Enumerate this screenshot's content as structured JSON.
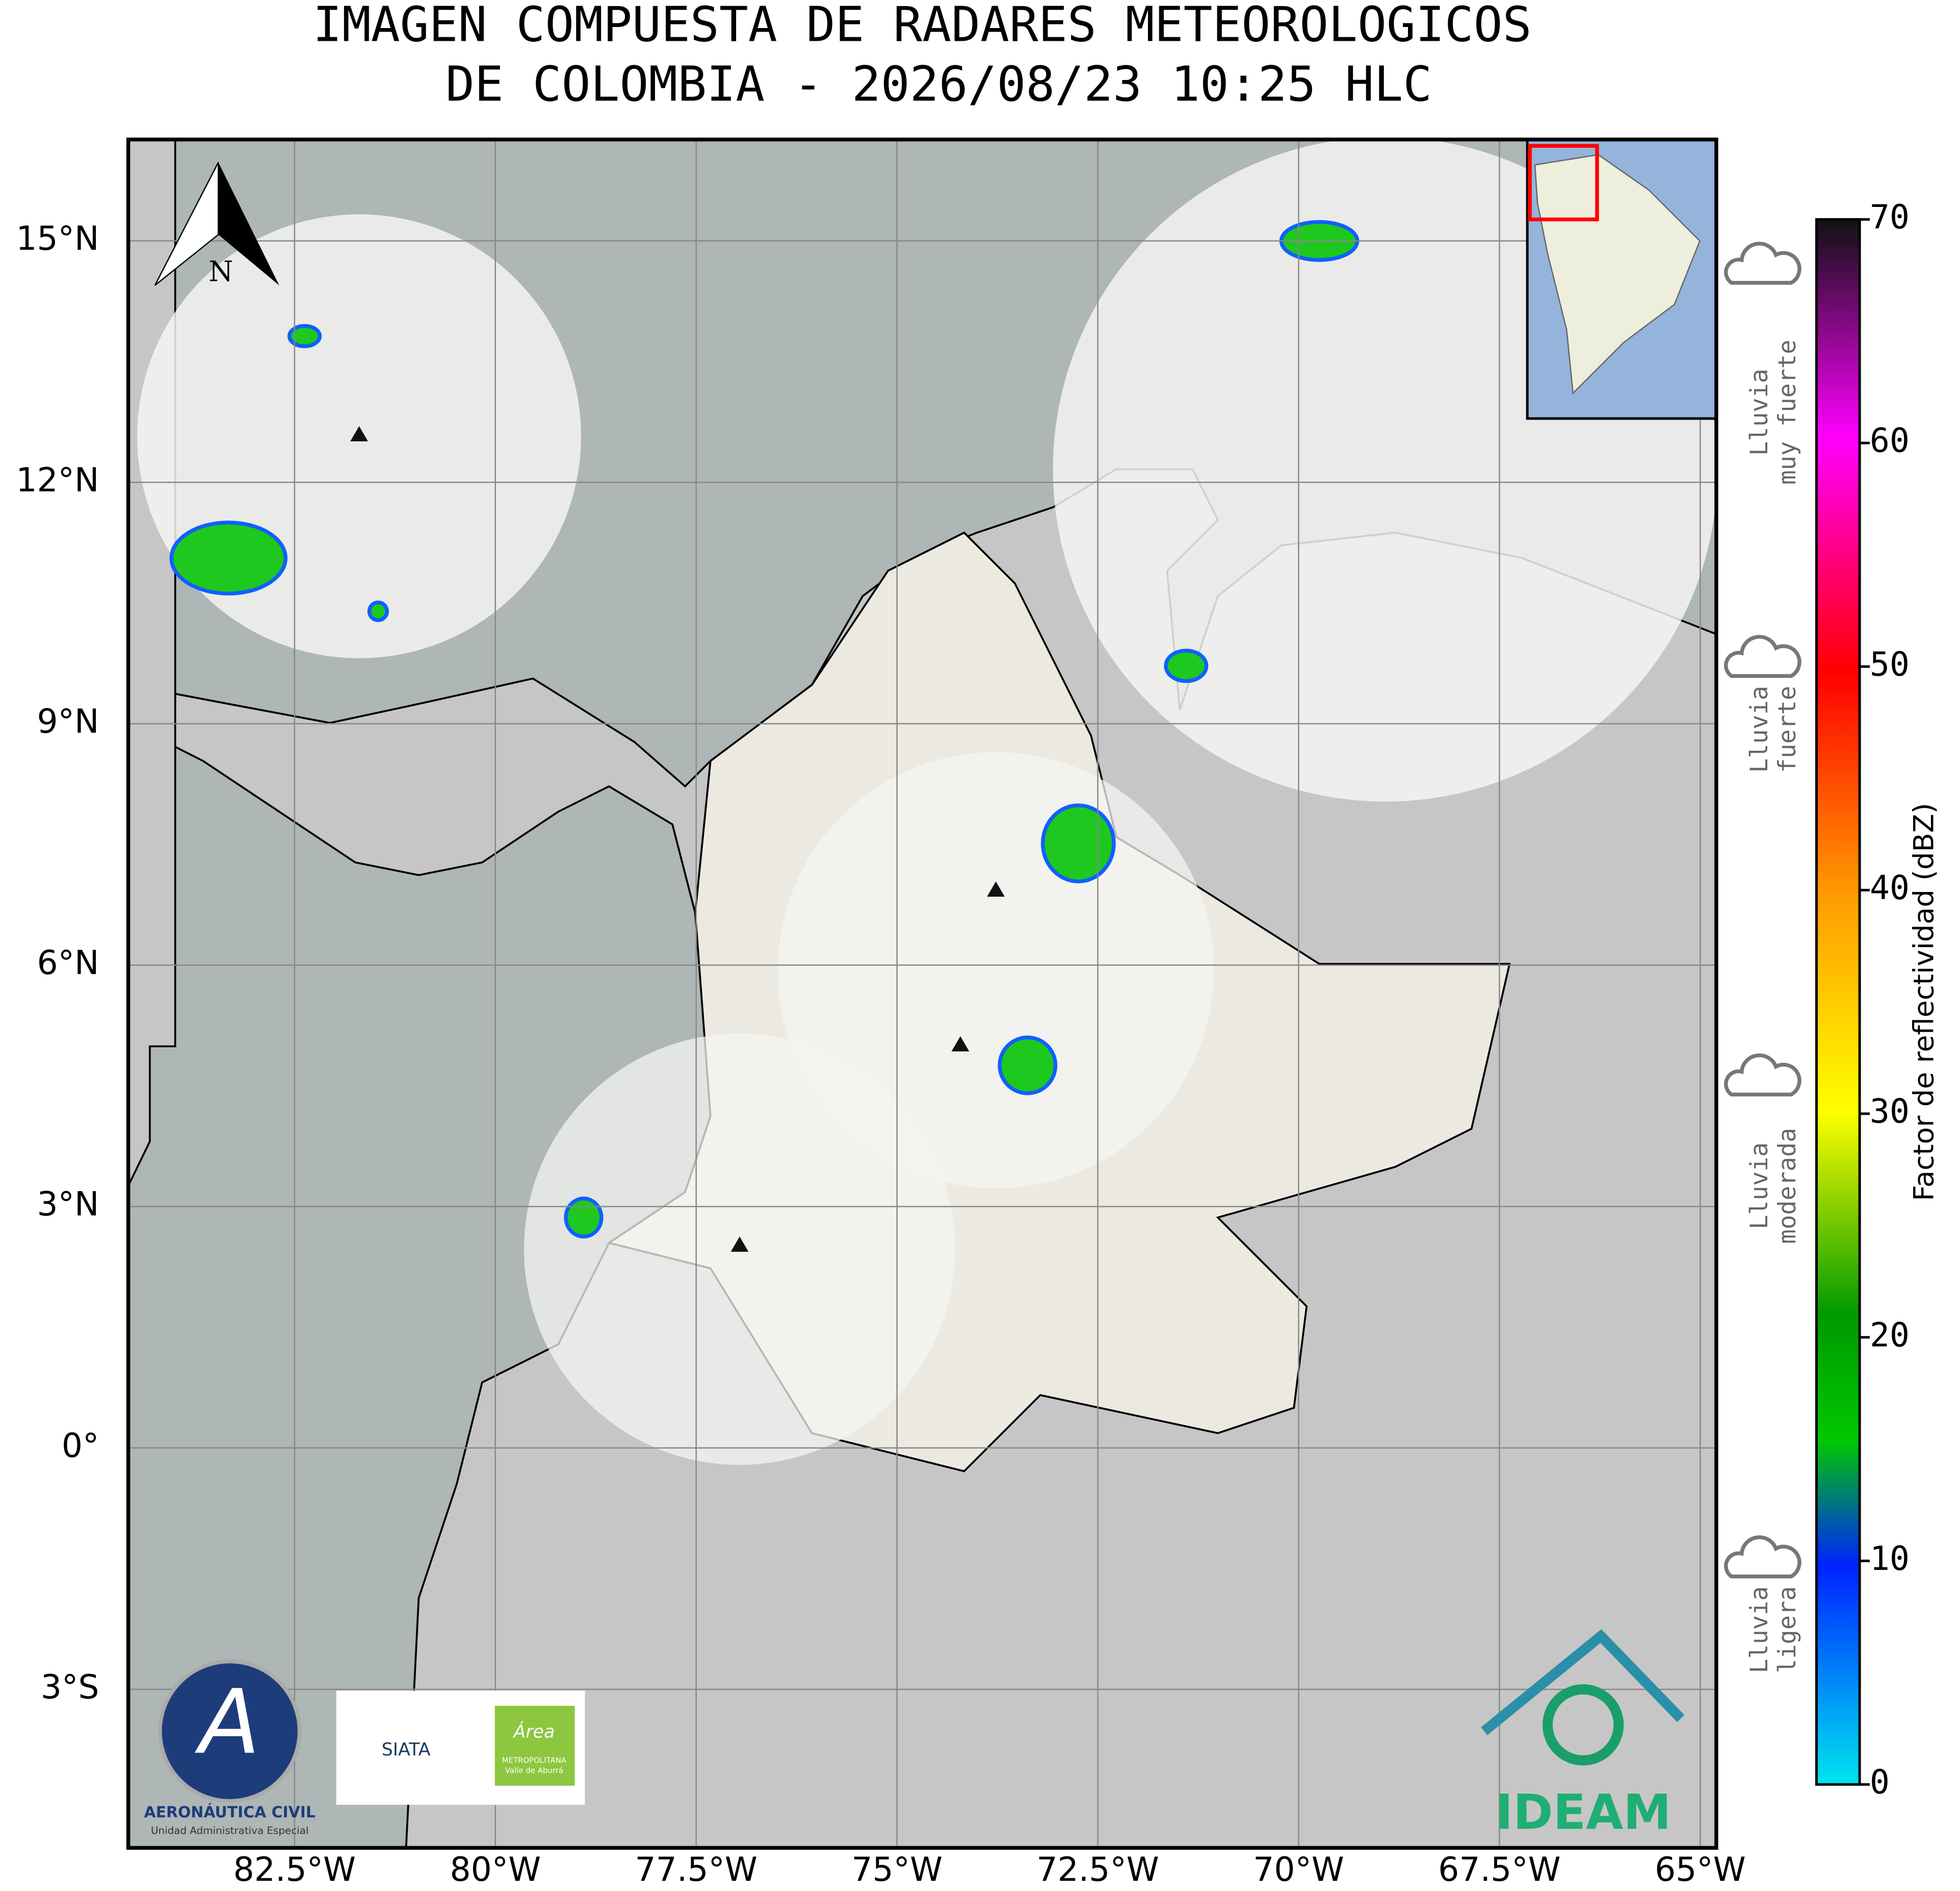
{
  "title_lines": [
    "IMAGEN COMPUESTA DE RADARES METEOROLOGICOS",
    "DE COLOMBIA - 2026/08/23 10:25 HLC"
  ],
  "map": {
    "xlim": [
      -84.57,
      -64.8
    ],
    "ylim": [
      -4.97,
      16.26
    ],
    "xticks": [
      {
        "value": -82.5,
        "label": "82.5°W"
      },
      {
        "value": -80,
        "label": "80°W"
      },
      {
        "value": -77.5,
        "label": "77.5°W"
      },
      {
        "value": -75,
        "label": "75°W"
      },
      {
        "value": -72.5,
        "label": "72.5°W"
      },
      {
        "value": -70,
        "label": "70°W"
      },
      {
        "value": -67.5,
        "label": "67.5°W"
      },
      {
        "value": -65,
        "label": "65°W"
      }
    ],
    "yticks": [
      {
        "value": 15,
        "label": "15°N"
      },
      {
        "value": 12,
        "label": "12°N"
      },
      {
        "value": 9,
        "label": "9°N"
      },
      {
        "value": 6,
        "label": "6°N"
      },
      {
        "value": 3,
        "label": "3°N"
      },
      {
        "value": 0,
        "label": "0°"
      },
      {
        "value": -3,
        "label": "3°S"
      }
    ],
    "north_label": "N"
  },
  "colorbar": {
    "label": "Factor de reflectividad (dBZ)",
    "ylim": [
      0,
      70
    ],
    "yticks": [
      0,
      10,
      20,
      30,
      40,
      50,
      60,
      70
    ]
  },
  "rain_levels": [
    {
      "lines": [
        "Lluvia",
        "muy fuerte"
      ]
    },
    {
      "lines": [
        "Lluvia",
        "fuerte"
      ]
    },
    {
      "lines": [
        "Lluvia",
        "moderada"
      ]
    },
    {
      "lines": [
        "Lluvia",
        "ligera"
      ]
    }
  ],
  "logos": {
    "aerocivil": [
      "AERONÁUTICA CIVIL",
      "Unidad Administrativa Especial"
    ],
    "siata": "SIATA",
    "area": [
      "Área",
      "METROPOLITANA",
      "Valle de Aburrá"
    ],
    "ideam": "IDEAM"
  }
}
